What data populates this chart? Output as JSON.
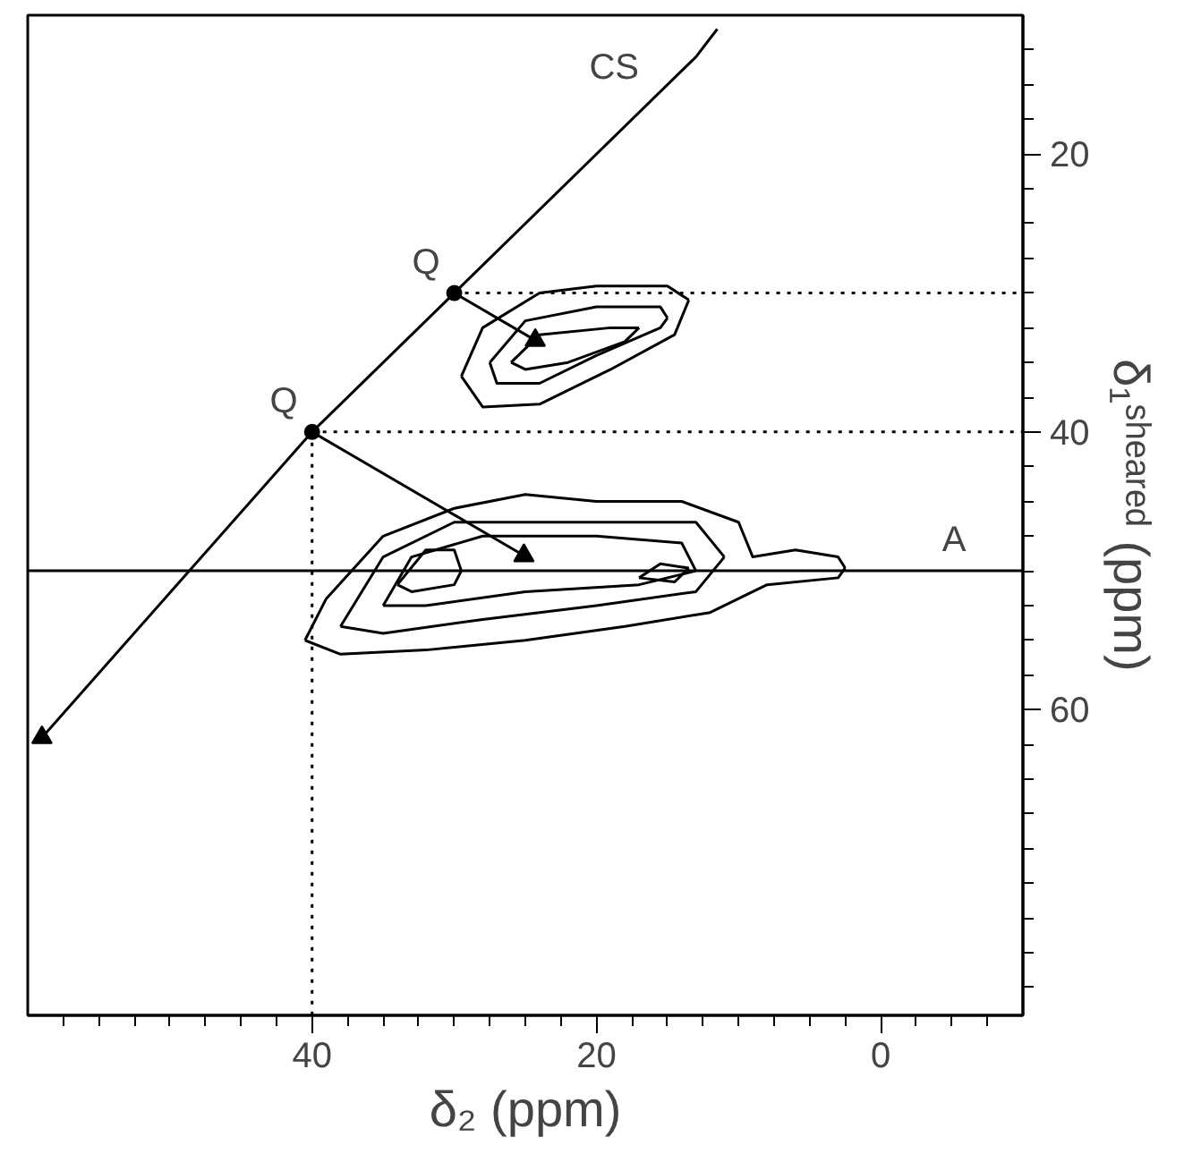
{
  "chart_data": {
    "type": "line",
    "xlabel": "δ₂ (ppm)",
    "ylabel": "δ₁ˢʰᵉᵃʳᵉᵈ (ppm)",
    "xlim": [
      60,
      -10
    ],
    "ylim": [
      82,
      10
    ],
    "xticks": [
      {
        "value": 57.5,
        "label": null
      },
      {
        "value": 55,
        "label": null
      },
      {
        "value": 52.5,
        "label": null
      },
      {
        "value": 50,
        "label": null
      },
      {
        "value": 47.5,
        "label": null
      },
      {
        "value": 45,
        "label": null
      },
      {
        "value": 42.5,
        "label": null
      },
      40,
      {
        "value": 37.5,
        "label": null
      },
      {
        "value": 35,
        "label": null
      },
      {
        "value": 32.5,
        "label": null
      },
      {
        "value": 30,
        "label": null
      },
      {
        "value": 27.5,
        "label": null
      },
      {
        "value": 25,
        "label": null
      },
      {
        "value": 22.5,
        "label": null
      },
      20,
      {
        "value": 17.5,
        "label": null
      },
      {
        "value": 15,
        "label": null
      },
      {
        "value": 12.5,
        "label": null
      },
      {
        "value": 10,
        "label": null
      },
      {
        "value": 7.5,
        "label": null
      },
      {
        "value": 5,
        "label": null
      },
      {
        "value": 2.5,
        "label": null
      },
      0,
      {
        "value": -2.5,
        "label": null
      },
      {
        "value": -5,
        "label": null
      },
      {
        "value": -7.5,
        "label": null
      }
    ],
    "yticks": [
      {
        "value": 12.5,
        "label": null
      },
      {
        "value": 15,
        "label": null
      },
      {
        "value": 17.5,
        "label": null
      },
      20,
      {
        "value": 22.5,
        "label": null
      },
      {
        "value": 25,
        "label": null
      },
      {
        "value": 27.5,
        "label": null
      },
      {
        "value": 30,
        "label": null
      },
      {
        "value": 32.5,
        "label": null
      },
      {
        "value": 35,
        "label": null
      },
      {
        "value": 37.5,
        "label": null
      },
      40,
      {
        "value": 42.5,
        "label": null
      },
      {
        "value": 45,
        "label": null
      },
      {
        "value": 47.5,
        "label": null
      },
      {
        "value": 50,
        "label": null
      },
      {
        "value": 52.5,
        "label": null
      },
      {
        "value": 55,
        "label": null
      },
      {
        "value": 57.5,
        "label": null
      },
      60,
      {
        "value": 62.5,
        "label": null
      },
      {
        "value": 65,
        "label": null
      },
      {
        "value": 67.5,
        "label": null
      },
      {
        "value": 70,
        "label": null
      },
      {
        "value": 72.5,
        "label": null
      },
      {
        "value": 75,
        "label": null
      },
      {
        "value": 77.5,
        "label": null
      },
      {
        "value": 80,
        "label": null
      }
    ],
    "grid": false,
    "ref_lines": [
      {
        "axis": "y",
        "value": 50,
        "color": "#000000",
        "line_style": "solid"
      }
    ],
    "annotations": [
      {
        "text": "CS",
        "x": 16,
        "y": 16
      },
      {
        "text": "Q",
        "x": 30,
        "y": 30
      },
      {
        "text": "Q",
        "x": 40,
        "y": 40
      },
      {
        "text": "A",
        "x": -7,
        "y": 50
      }
    ],
    "series": [
      {
        "color": "#000000",
        "line_style": "solid",
        "x": [
          11.5,
          13,
          30,
          40,
          59
        ],
        "values": [
          11,
          13,
          30,
          40,
          62
        ]
      },
      {
        "color": "#000000",
        "line_style": "dotted",
        "x": [
          30,
          -10
        ],
        "values": [
          30,
          30
        ]
      },
      {
        "color": "#000000",
        "line_style": "dotted",
        "x": [
          40,
          -10
        ],
        "values": [
          40,
          40
        ]
      },
      {
        "color": "#000000",
        "line_style": "dotted",
        "x": [
          40,
          40
        ],
        "values": [
          40,
          82
        ]
      },
      {
        "color": "#000000",
        "line_style": "solid",
        "x": [
          30,
          24.3
        ],
        "values": [
          30,
          33.4
        ]
      },
      {
        "color": "#000000",
        "line_style": "solid",
        "x": [
          40,
          25.1
        ],
        "values": [
          40,
          48.9
        ]
      },
      {
        "type": "scatter",
        "color": "#000000",
        "marker": "circle",
        "x": [
          30,
          40
        ],
        "values": [
          30,
          40
        ]
      },
      {
        "type": "scatter",
        "color": "#000000",
        "marker": "triangle",
        "x": [
          24.3,
          25.1,
          59
        ],
        "values": [
          33.4,
          48.9,
          62
        ]
      },
      {
        "color": "#000000",
        "line_style": "solid",
        "x": [
          29.5,
          28,
          24,
          20,
          15,
          13.5
        ],
        "values": [
          36,
          32.5,
          30,
          29.5,
          29.5,
          30.5
        ]
      },
      {
        "color": "#000000",
        "line_style": "solid",
        "x": [
          29.5,
          28,
          24,
          19,
          14.5,
          13.5
        ],
        "values": [
          36,
          38.2,
          38,
          35.5,
          33,
          30.5
        ]
      },
      {
        "color": "#000000",
        "line_style": "solid",
        "x": [
          27.5,
          25,
          20,
          15.5,
          15
        ],
        "values": [
          35,
          32,
          31,
          31,
          31.8
        ]
      },
      {
        "color": "#000000",
        "line_style": "solid",
        "x": [
          27.5,
          27,
          24,
          20,
          15.5,
          15
        ],
        "values": [
          35,
          36.5,
          36.5,
          34.5,
          32.5,
          31.8
        ]
      },
      {
        "color": "#000000",
        "line_style": "solid",
        "x": [
          26,
          24,
          19,
          17
        ],
        "values": [
          35,
          33,
          32.5,
          32.5
        ]
      },
      {
        "color": "#000000",
        "line_style": "solid",
        "x": [
          26,
          25,
          22,
          18,
          17
        ],
        "values": [
          35,
          35.5,
          35,
          33.5,
          32.5
        ]
      },
      {
        "color": "#000000",
        "line_style": "solid",
        "x": [
          40.5,
          39,
          35,
          30,
          25,
          20,
          14,
          10,
          9,
          6,
          3,
          2.5
        ],
        "values": [
          55,
          52,
          47.5,
          45.5,
          44.5,
          45,
          45,
          46.5,
          49,
          48.5,
          49,
          49.8
        ]
      },
      {
        "color": "#000000",
        "line_style": "solid",
        "x": [
          40.5,
          38,
          32,
          25,
          18,
          12,
          8,
          3,
          2.5
        ],
        "values": [
          55,
          56,
          55.7,
          55,
          54,
          53,
          51,
          50.5,
          49.8
        ]
      },
      {
        "color": "#000000",
        "line_style": "solid",
        "x": [
          38,
          35,
          30,
          20,
          13,
          11
        ],
        "values": [
          54,
          49,
          46.5,
          46.5,
          46.5,
          49
        ]
      },
      {
        "color": "#000000",
        "line_style": "solid",
        "x": [
          38,
          35,
          28,
          20,
          13,
          11
        ],
        "values": [
          54,
          54.5,
          53.5,
          52.5,
          51.5,
          49
        ]
      },
      {
        "color": "#000000",
        "line_style": "solid",
        "x": [
          35,
          33,
          28,
          20,
          14,
          13
        ],
        "values": [
          52.5,
          49,
          47.5,
          47.5,
          48,
          50
        ]
      },
      {
        "color": "#000000",
        "line_style": "solid",
        "x": [
          35,
          32,
          25,
          17,
          13
        ],
        "values": [
          52.5,
          52.5,
          51.5,
          51,
          50
        ]
      },
      {
        "color": "#000000",
        "line_style": "solid",
        "x": [
          34,
          32,
          30,
          29.5
        ],
        "values": [
          51,
          48.5,
          48.5,
          50
        ]
      },
      {
        "color": "#000000",
        "line_style": "solid",
        "x": [
          34,
          33,
          30,
          29.5
        ],
        "values": [
          51,
          51.5,
          51,
          50
        ]
      },
      {
        "color": "#000000",
        "line_style": "solid",
        "x": [
          17,
          15.5,
          13.5
        ],
        "values": [
          50.5,
          49.5,
          49.8
        ]
      },
      {
        "color": "#000000",
        "line_style": "solid",
        "x": [
          17,
          14.5,
          13.5
        ],
        "values": [
          50.5,
          50.8,
          49.8
        ]
      }
    ]
  }
}
